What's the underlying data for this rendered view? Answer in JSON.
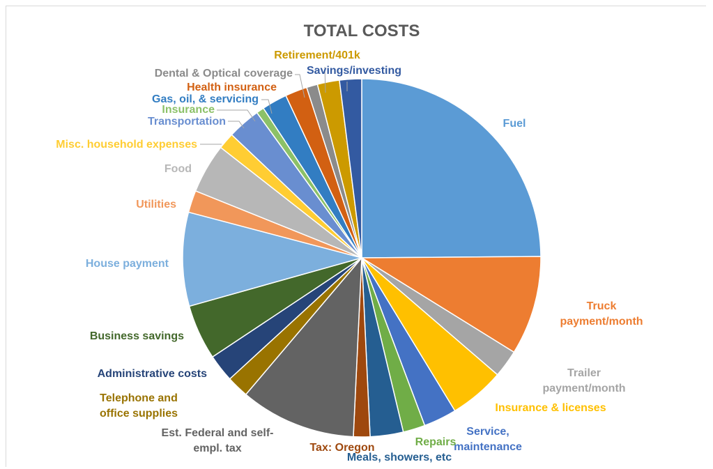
{
  "chart_data": {
    "type": "pie",
    "title": "TOTAL COSTS",
    "legend": "none",
    "slices": [
      {
        "label": "Fuel",
        "value": 25.0,
        "color": "#5B9BD5"
      },
      {
        "label": "Truck payment/month",
        "value": 9.0,
        "color": "#ED7D31"
      },
      {
        "label": "Trailer payment/month",
        "value": 2.5,
        "color": "#A5A5A5"
      },
      {
        "label": "Insurance & licenses",
        "value": 5.0,
        "color": "#FFC000"
      },
      {
        "label": "Service, maintenance",
        "value": 3.0,
        "color": "#4472C4"
      },
      {
        "label": "Repairs",
        "value": 2.0,
        "color": "#70AD47"
      },
      {
        "label": "Meals, showers, etc",
        "value": 3.0,
        "color": "#255E91"
      },
      {
        "label": "Tax: Oregon",
        "value": 1.5,
        "color": "#9E480E"
      },
      {
        "label": "Est. Federal and self-empl. tax",
        "value": 10.5,
        "color": "#636363"
      },
      {
        "label": "Telephone and office supplies",
        "value": 2.0,
        "color": "#997300"
      },
      {
        "label": "Administrative costs",
        "value": 2.5,
        "color": "#264478"
      },
      {
        "label": "Business savings",
        "value": 5.0,
        "color": "#43682B"
      },
      {
        "label": "House payment",
        "value": 8.5,
        "color": "#7CAFDD"
      },
      {
        "label": "Utilities",
        "value": 2.0,
        "color": "#F1975A"
      },
      {
        "label": "Food",
        "value": 4.5,
        "color": "#B7B7B7"
      },
      {
        "label": "Misc. household expenses",
        "value": 1.5,
        "color": "#FFCD33"
      },
      {
        "label": "Transportation",
        "value": 3.0,
        "color": "#698ED0"
      },
      {
        "label": "Insurance",
        "value": 0.7,
        "color": "#8CC168"
      },
      {
        "label": "Gas, oil, & servicing",
        "value": 2.3,
        "color": "#327DC2"
      },
      {
        "label": "Health insurance",
        "value": 2.0,
        "color": "#D26012"
      },
      {
        "label": "Dental & Optical coverage",
        "value": 1.0,
        "color": "#8B8B8B"
      },
      {
        "label": "Retirement/401k",
        "value": 2.0,
        "color": "#CC9A00"
      },
      {
        "label": "Savings/investing",
        "value": 2.0,
        "color": "#335AA1"
      }
    ]
  }
}
